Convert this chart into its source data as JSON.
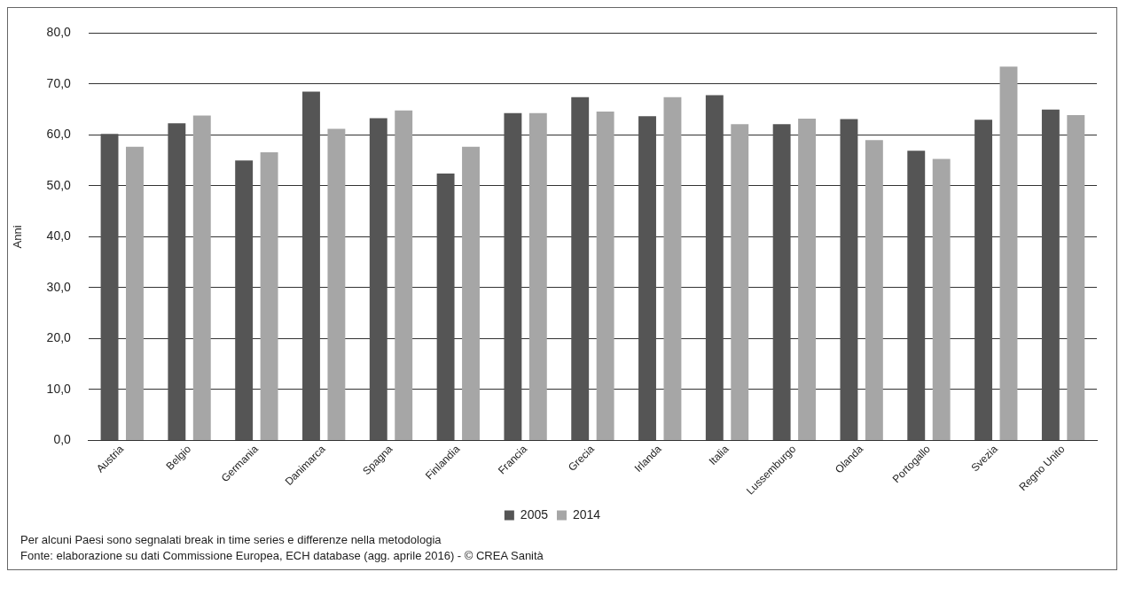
{
  "chart_data": {
    "type": "bar",
    "ylabel": "Anni",
    "categories": [
      "Austria",
      "Belgio",
      "Germania",
      "Danimarca",
      "Spagna",
      "Finlandia",
      "Francia",
      "Grecia",
      "Irlanda",
      "Italia",
      "Lussemburgo",
      "Olanda",
      "Portogallo",
      "Svezia",
      "Regno Unito"
    ],
    "series": [
      {
        "name": "2005",
        "color": "#555555",
        "values": [
          60.2,
          62.3,
          55.0,
          68.5,
          63.3,
          52.4,
          64.3,
          67.4,
          63.7,
          67.8,
          62.1,
          63.1,
          56.9,
          63.0,
          65.0
        ]
      },
      {
        "name": "2014",
        "color": "#a6a6a6",
        "values": [
          57.7,
          63.8,
          56.6,
          61.2,
          64.8,
          57.7,
          64.3,
          64.6,
          67.4,
          62.1,
          63.2,
          59.0,
          55.3,
          73.4,
          63.9
        ]
      }
    ],
    "ylim": [
      0,
      80
    ],
    "yticks": [
      {
        "value": 0,
        "label": "0,0"
      },
      {
        "value": 10,
        "label": "10,0"
      },
      {
        "value": 20,
        "label": "20,0"
      },
      {
        "value": 30,
        "label": "30,0"
      },
      {
        "value": 40,
        "label": "40,0"
      },
      {
        "value": 50,
        "label": "50,0"
      },
      {
        "value": 60,
        "label": "60,0"
      },
      {
        "value": 70,
        "label": "70,0"
      },
      {
        "value": 80,
        "label": "80,0"
      }
    ],
    "grid": "y",
    "legend": "bottom",
    "annotations": [
      "Per alcuni Paesi sono segnalati break in time series e differenze nella metodologia",
      "Fonte: elaborazione su dati Commissione Europea, ECH database (agg. aprile 2016) - © CREA Sanità"
    ]
  }
}
